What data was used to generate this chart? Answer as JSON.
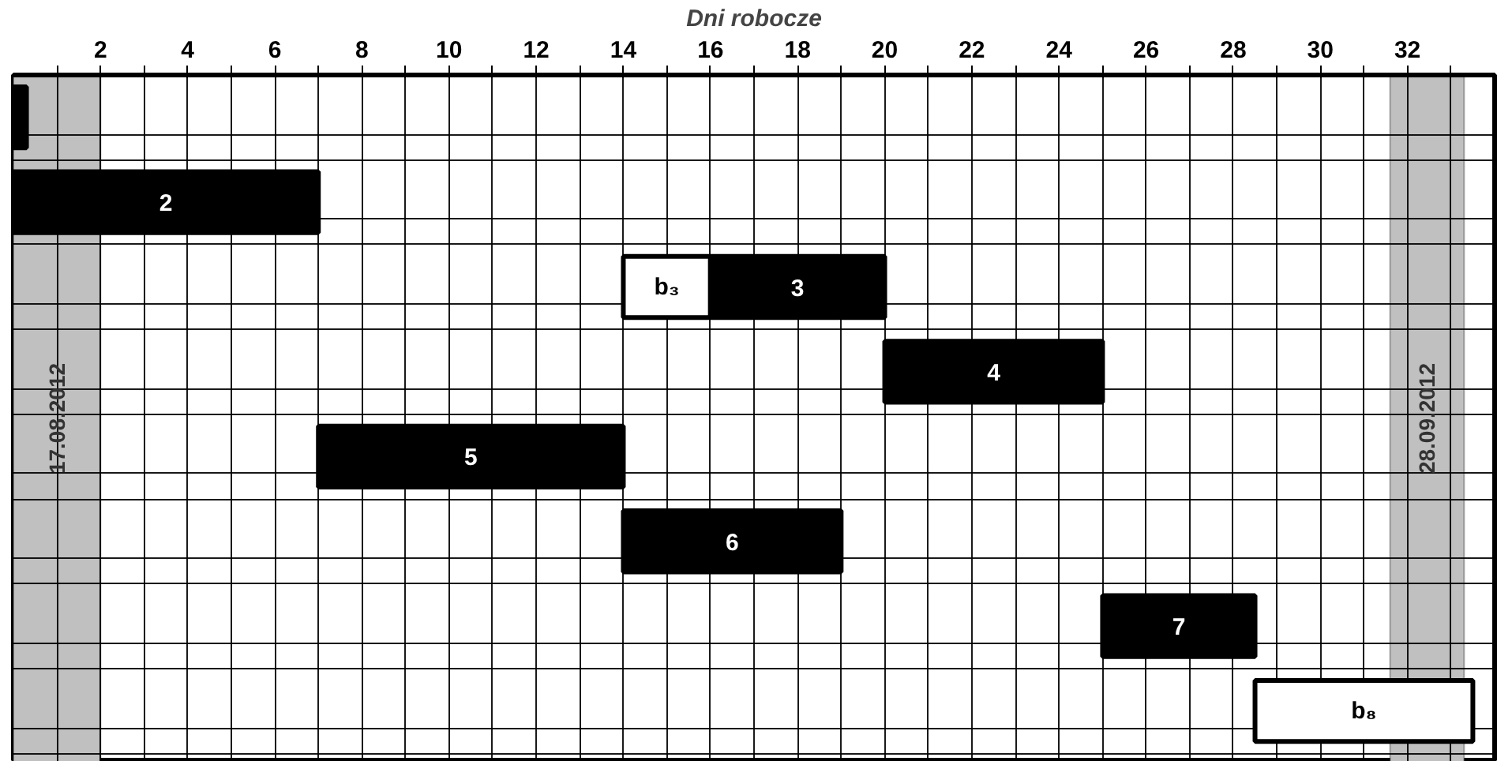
{
  "chart_data": {
    "type": "bar",
    "orientation": "horizontal",
    "xlabel": "Dni robocze",
    "categories": [
      null,
      null,
      null,
      null,
      null,
      null,
      null,
      null
    ],
    "series": [
      {
        "color": "#000000",
        "base": [
          0,
          null,
          null,
          null,
          null,
          null,
          null,
          null
        ],
        "values": [
          0.3,
          null,
          null,
          null,
          null,
          null,
          null,
          null
        ]
      },
      {
        "name": "2",
        "color": "#000000",
        "base": [
          null,
          0,
          null,
          null,
          null,
          null,
          null,
          null
        ],
        "values": [
          null,
          7,
          null,
          null,
          null,
          null,
          null,
          null
        ]
      },
      {
        "name": "b₃",
        "color": "#ffffff",
        "base": [
          null,
          null,
          14,
          null,
          null,
          null,
          null,
          null
        ],
        "values": [
          null,
          null,
          2,
          null,
          null,
          null,
          null,
          null
        ]
      },
      {
        "name": "3",
        "color": "#000000",
        "base": [
          null,
          null,
          16,
          null,
          null,
          null,
          null,
          null
        ],
        "values": [
          null,
          null,
          4,
          null,
          null,
          null,
          null,
          null
        ]
      },
      {
        "name": "4",
        "color": "#000000",
        "base": [
          null,
          null,
          null,
          20,
          null,
          null,
          null,
          null
        ],
        "values": [
          null,
          null,
          null,
          5,
          null,
          null,
          null,
          null
        ]
      },
      {
        "name": "5",
        "color": "#000000",
        "base": [
          null,
          null,
          null,
          null,
          7,
          null,
          null,
          null
        ],
        "values": [
          null,
          null,
          null,
          null,
          7,
          null,
          null,
          null
        ]
      },
      {
        "name": "6",
        "color": "#000000",
        "base": [
          null,
          null,
          null,
          null,
          null,
          14,
          null,
          null
        ],
        "values": [
          null,
          null,
          null,
          null,
          null,
          5,
          null,
          null
        ]
      },
      {
        "name": "7",
        "color": "#000000",
        "base": [
          null,
          null,
          null,
          null,
          null,
          null,
          25,
          null
        ],
        "values": [
          null,
          null,
          null,
          null,
          null,
          null,
          3.5,
          null
        ]
      },
      {
        "name": "b₈",
        "color": "#ffffff",
        "base": [
          null,
          null,
          null,
          null,
          null,
          null,
          null,
          28.5
        ],
        "values": [
          null,
          null,
          null,
          null,
          null,
          null,
          null,
          5
        ]
      }
    ],
    "xlim": [
      0,
      34
    ],
    "xticks": [
      {
        "value": 1,
        "label": null
      },
      2,
      {
        "value": 3,
        "label": null
      },
      4,
      {
        "value": 5,
        "label": null
      },
      6,
      {
        "value": 7,
        "label": null
      },
      8,
      {
        "value": 9,
        "label": null
      },
      10,
      {
        "value": 11,
        "label": null
      },
      12,
      {
        "value": 13,
        "label": null
      },
      14,
      {
        "value": 15,
        "label": null
      },
      16,
      {
        "value": 17,
        "label": null
      },
      18,
      {
        "value": 19,
        "label": null
      },
      20,
      {
        "value": 21,
        "label": null
      },
      22,
      {
        "value": 23,
        "label": null
      },
      24,
      {
        "value": 25,
        "label": null
      },
      26,
      {
        "value": 27,
        "label": null
      },
      28,
      {
        "value": 29,
        "label": null
      },
      30,
      {
        "value": 31,
        "label": null
      },
      32,
      {
        "value": 33,
        "label": null
      }
    ],
    "bands": [
      {
        "axis": "x",
        "from": 0,
        "to": 2,
        "label": "17.08.2012",
        "color": "#c0c0c0"
      },
      {
        "axis": "x",
        "from": 31.6,
        "to": 33.3,
        "label": "28.09.2012",
        "color": "#c0c0c0"
      }
    ],
    "grid": true,
    "tick_labels": "x"
  }
}
